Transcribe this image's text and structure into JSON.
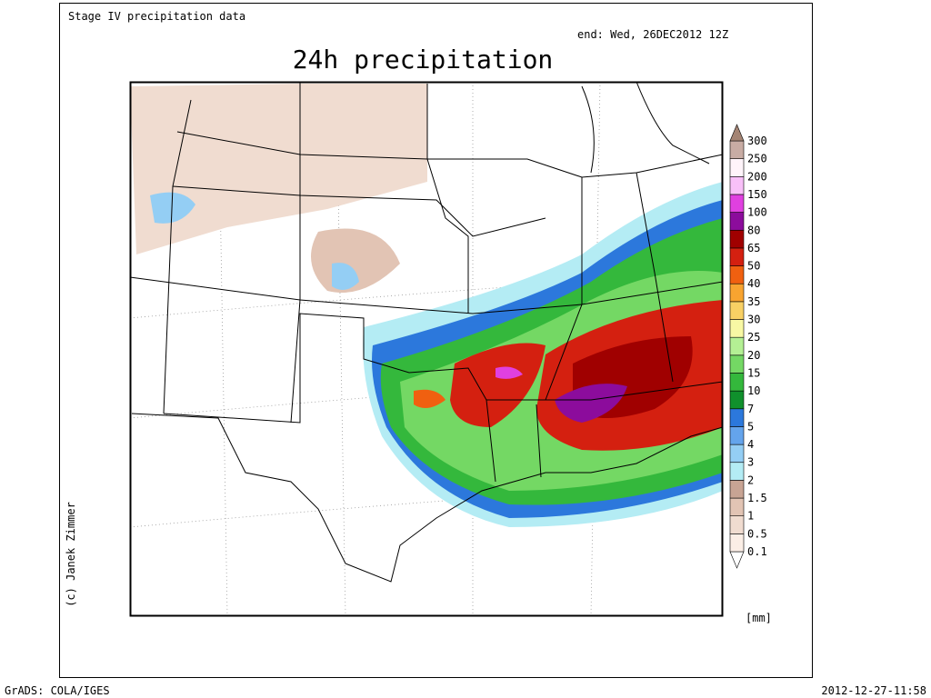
{
  "header": {
    "source": "Stage IV precipitation data",
    "valid": "end: Wed, 26DEC2012 12Z",
    "title": "24h precipitation"
  },
  "map": {
    "credit": "(c) Janek Zimmer"
  },
  "colorbar": {
    "unit": "[mm]",
    "labels": [
      "0.1",
      "0.5",
      "1",
      "1.5",
      "2",
      "3",
      "4",
      "5",
      "7",
      "10",
      "15",
      "20",
      "25",
      "30",
      "35",
      "40",
      "50",
      "65",
      "80",
      "100",
      "150",
      "200",
      "250",
      "300"
    ],
    "colors": [
      "#ffffff",
      "#fbeee6",
      "#f0dcd0",
      "#e2c4b4",
      "#c8a494",
      "#b4ecf4",
      "#94cef4",
      "#64a4ec",
      "#2c78dc",
      "#10902c",
      "#34b83c",
      "#74d864",
      "#b4f094",
      "#f8f8a4",
      "#f8d064",
      "#f8a430",
      "#f06010",
      "#d42010",
      "#a00000",
      "#8c0c9c",
      "#e040e0",
      "#f8c0f8",
      "#fff4fa",
      "#c8aca4",
      "#a48474"
    ]
  },
  "footer": {
    "software": "GrADS: COLA/IGES",
    "timestamp": "2012-12-27-11:58"
  }
}
